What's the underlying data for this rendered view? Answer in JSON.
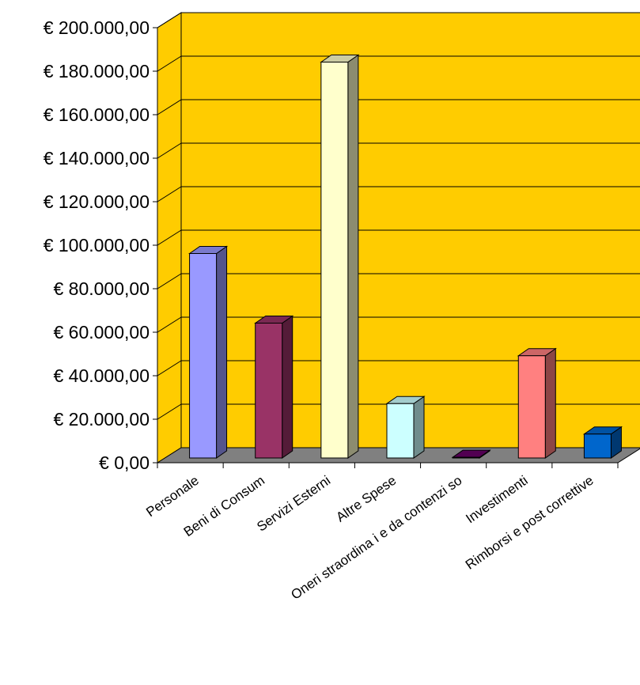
{
  "chart_data": {
    "type": "bar",
    "title": "",
    "xlabel": "",
    "ylabel": "",
    "ylim": [
      0,
      200000
    ],
    "y_ticks": [
      0,
      20000,
      40000,
      60000,
      80000,
      100000,
      120000,
      140000,
      160000,
      180000,
      200000
    ],
    "y_tick_labels": [
      "€ 0,00",
      "€ 20.000,00",
      "€ 40.000,00",
      "€ 60.000,00",
      "€ 80.000,00",
      "€ 100.000,00",
      "€ 120.000,00",
      "€ 140.000,00",
      "€ 160.000,00",
      "€ 180.000,00",
      "€ 200.000,00"
    ],
    "grid": true,
    "three_d": true,
    "categories": [
      "Personale",
      "Beni di Consum",
      "Servizi Esterni",
      "Altre Spese",
      "Oneri straordina i e da contenzi so",
      "Investimenti",
      "Rimborsi e post  correttive"
    ],
    "values": [
      94000,
      62000,
      182000,
      25000,
      300,
      47000,
      11000
    ],
    "bar_colors": [
      "#9999ff",
      "#993366",
      "#ffffcc",
      "#ccffff",
      "#660066",
      "#ff8080",
      "#0066cc"
    ],
    "colors": {
      "wall": "#ffcc00",
      "floor": "#808080",
      "gridline": "#000000"
    }
  }
}
